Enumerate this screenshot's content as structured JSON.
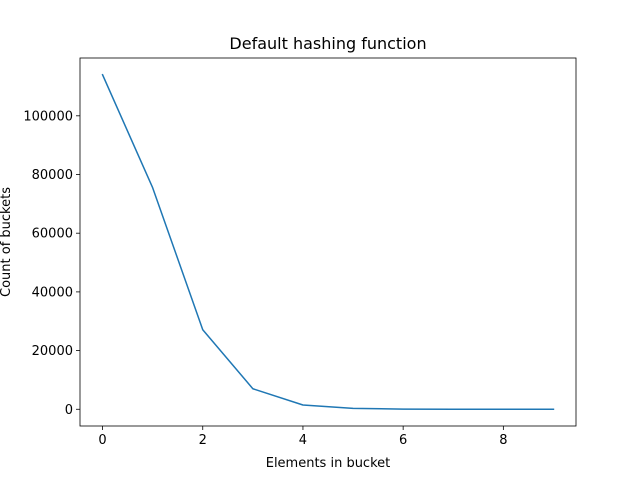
{
  "chart_data": {
    "type": "line",
    "title": "Default hashing function",
    "xlabel": "Elements in bucket",
    "ylabel": "Count of buckets",
    "x": [
      0,
      1,
      2,
      3,
      4,
      5,
      6,
      7,
      8,
      9
    ],
    "series": [
      {
        "values": [
          114000,
          75500,
          27100,
          7000,
          1450,
          300,
          60,
          10,
          2,
          0
        ],
        "color": "#1f77b4"
      }
    ],
    "xlim": [
      -0.45,
      9.45
    ],
    "ylim": [
      -5700,
      119700
    ],
    "xticks": [
      0,
      2,
      4,
      6,
      8
    ],
    "xtick_labels": [
      "0",
      "2",
      "4",
      "6",
      "8"
    ],
    "yticks": [
      0,
      20000,
      40000,
      60000,
      80000,
      100000
    ],
    "ytick_labels": [
      "0",
      "20000",
      "40000",
      "60000",
      "80000",
      "100000"
    ],
    "grid": false,
    "legend": "none"
  }
}
